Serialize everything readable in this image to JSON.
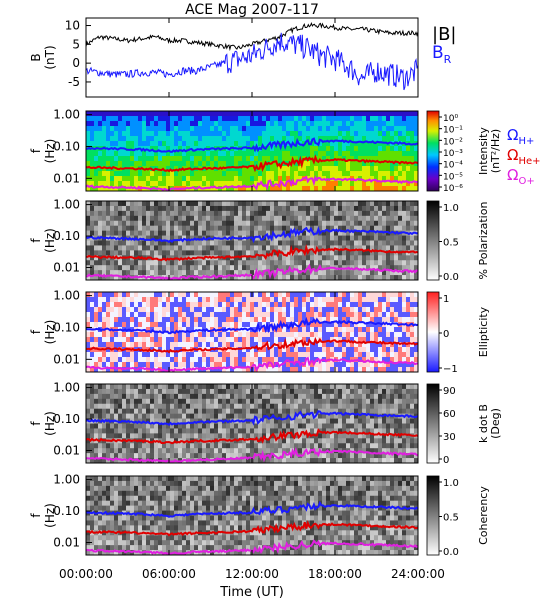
{
  "title": "ACE Mag 2007-117",
  "time_axis": {
    "label": "Time (UT)",
    "ticks": [
      "00:00:00",
      "06:00:00",
      "12:00:00",
      "18:00:00",
      "24:00:00"
    ],
    "hours": [
      0,
      6,
      12,
      18,
      24
    ],
    "range": [
      0,
      24
    ]
  },
  "legend_b": {
    "total": "|B|",
    "radial": "B",
    "radial_sub": "R",
    "total_color": "#000000",
    "radial_color": "#1a1aff"
  },
  "gyro_labels": [
    {
      "symbol": "Ω",
      "sub": "H+",
      "color": "#1a1aff"
    },
    {
      "symbol": "Ω",
      "sub": "He+",
      "color": "#e00000"
    },
    {
      "symbol": "Ω",
      "sub": "O+",
      "color": "#e020e0"
    }
  ],
  "panels": [
    {
      "id": "bfield",
      "ylabel_top": "B",
      "ylabel_bottom": "(nT)",
      "yticks": [
        "10",
        "5",
        "0",
        "-5"
      ],
      "yvalues": [
        10,
        5,
        0,
        -5
      ],
      "ylim": [
        -9,
        12
      ]
    },
    {
      "id": "intensity",
      "ylabel_top": "f",
      "ylabel_bottom": "(Hz)",
      "yticks": [
        "1.00",
        "0.10",
        "0.01"
      ],
      "colorbar": "rainbow",
      "cb_title": "Intensity",
      "cb_title2": "(nT²/Hz)",
      "cb_ticks": [
        "10⁰",
        "10⁻¹",
        "10⁻²",
        "10⁻³",
        "10⁻⁴",
        "10⁻⁵",
        "10⁻⁶"
      ]
    },
    {
      "id": "polarization",
      "ylabel_top": "f",
      "ylabel_bottom": "(Hz)",
      "yticks": [
        "1.00",
        "0.10",
        "0.01"
      ],
      "colorbar": "gray",
      "cb_title": "% Polarization",
      "cb_title2": "",
      "cb_ticks": [
        "1.0",
        "0.5",
        "0.0"
      ]
    },
    {
      "id": "ellipticity",
      "ylabel_top": "f",
      "ylabel_bottom": "(Hz)",
      "yticks": [
        "1.00",
        "0.10",
        "0.01"
      ],
      "colorbar": "bwr",
      "cb_title": "Ellipticity",
      "cb_title2": "",
      "cb_ticks": [
        "1",
        "0",
        "−1"
      ]
    },
    {
      "id": "kdotb",
      "ylabel_top": "f",
      "ylabel_bottom": "(Hz)",
      "yticks": [
        "1.00",
        "0.10",
        "0.01"
      ],
      "colorbar": "gray",
      "cb_title": "k dot B",
      "cb_title2": "(Deg)",
      "cb_ticks": [
        "90",
        "60",
        "30",
        "0"
      ]
    },
    {
      "id": "coherency",
      "ylabel_top": "f",
      "ylabel_bottom": "(Hz)",
      "yticks": [
        "1.00",
        "0.10",
        "0.01"
      ],
      "colorbar": "gray",
      "cb_title": "Coherency",
      "cb_title2": "",
      "cb_ticks": [
        "1.0",
        "0.5",
        "0.0"
      ]
    }
  ],
  "chart_data": {
    "type": "line",
    "title": "ACE Mag 2007-117",
    "xlabel": "Time (UT)",
    "xlim": [
      0,
      24
    ],
    "field_series": [
      {
        "name": "|B|",
        "color": "#000000",
        "x": [
          0,
          1,
          2,
          3,
          4,
          5,
          6,
          7,
          8,
          9,
          10,
          11,
          12,
          13,
          14,
          15,
          16,
          17,
          18,
          19,
          20,
          21,
          22,
          23,
          24
        ],
        "y": [
          5,
          7,
          6.5,
          6,
          6.5,
          7,
          6,
          6,
          5.5,
          5,
          4.5,
          4,
          5,
          6,
          7,
          9,
          10,
          10,
          9.5,
          9,
          9,
          8.5,
          8,
          8,
          8
        ]
      },
      {
        "name": "B",
        "color": "#1a1aff",
        "x": [
          0,
          1,
          2,
          3,
          4,
          5,
          6,
          7,
          8,
          9,
          10,
          11,
          12,
          13,
          14,
          15,
          16,
          17,
          18,
          19,
          20,
          21,
          22,
          23,
          24
        ],
        "y": [
          -2,
          -2.5,
          -3,
          -3,
          -2.5,
          -2.5,
          -3,
          -2,
          -2,
          -1,
          0,
          1,
          2,
          4,
          6,
          5,
          4,
          2,
          1,
          -1,
          -4,
          -2,
          -3,
          -4,
          -2
        ]
      }
    ],
    "b_ylim": [
      -9,
      12
    ],
    "frequency_lines": {
      "ylim_hz": [
        0.004,
        1.3
      ],
      "x": [
        0,
        2,
        4,
        6,
        8,
        10,
        12,
        14,
        16,
        18,
        20,
        22,
        24
      ],
      "series": [
        {
          "name": "ΩH+",
          "color": "#1a1aff",
          "y": [
            0.09,
            0.085,
            0.08,
            0.07,
            0.08,
            0.085,
            0.09,
            0.11,
            0.14,
            0.15,
            0.14,
            0.13,
            0.12
          ]
        },
        {
          "name": "ΩHe+",
          "color": "#e00000",
          "y": [
            0.022,
            0.021,
            0.02,
            0.018,
            0.02,
            0.021,
            0.023,
            0.028,
            0.035,
            0.038,
            0.035,
            0.032,
            0.03
          ]
        },
        {
          "name": "ΩO+",
          "color": "#e020e0",
          "y": [
            0.0056,
            0.0053,
            0.005,
            0.0045,
            0.005,
            0.0053,
            0.0058,
            0.007,
            0.0088,
            0.0095,
            0.0088,
            0.008,
            0.0075
          ]
        }
      ]
    }
  }
}
